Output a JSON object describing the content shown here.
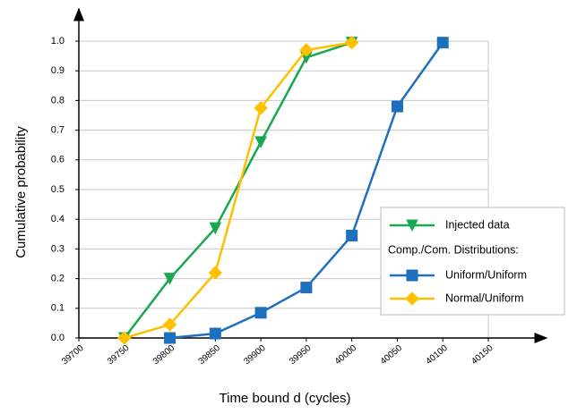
{
  "chart_data": {
    "type": "line",
    "x_label": "Time bound d (cycles)",
    "y_label": "Cumulative probability",
    "xlim": [
      39700,
      40150
    ],
    "xticks": [
      39700,
      39750,
      39800,
      39850,
      39900,
      39950,
      40000,
      40050,
      40100,
      40150
    ],
    "ylim": [
      0,
      1
    ],
    "yticks": [
      {
        "value": 0,
        "label": "0.0"
      },
      0.1,
      0.2,
      0.3,
      0.4,
      0.5,
      0.6,
      0.7,
      0.8,
      0.9,
      {
        "value": 1,
        "label": "1.0"
      }
    ],
    "grid": true,
    "legend": "lower right",
    "legend_heading": "Comp./Com. Distributions:",
    "series": [
      {
        "name": "Injected data",
        "color": "#19a84f",
        "marker": "triangle-down",
        "x": [
          39750,
          39800,
          39850,
          39900,
          39950,
          40000
        ],
        "values": [
          0,
          0.2,
          0.37,
          0.66,
          0.945,
          0.995
        ]
      },
      {
        "name": "Uniform/Uniform",
        "color": "#1f6fbf",
        "marker": "square",
        "x": [
          39800,
          39850,
          39900,
          39950,
          40000,
          40050,
          40100
        ],
        "values": [
          0,
          0.015,
          0.085,
          0.17,
          0.345,
          0.78,
          0.995
        ]
      },
      {
        "name": "Normal/Uniform",
        "color": "#ffc000",
        "marker": "diamond",
        "x": [
          39750,
          39800,
          39850,
          39900,
          39950,
          40000
        ],
        "values": [
          0,
          0.045,
          0.22,
          0.775,
          0.97,
          0.995
        ]
      }
    ]
  }
}
